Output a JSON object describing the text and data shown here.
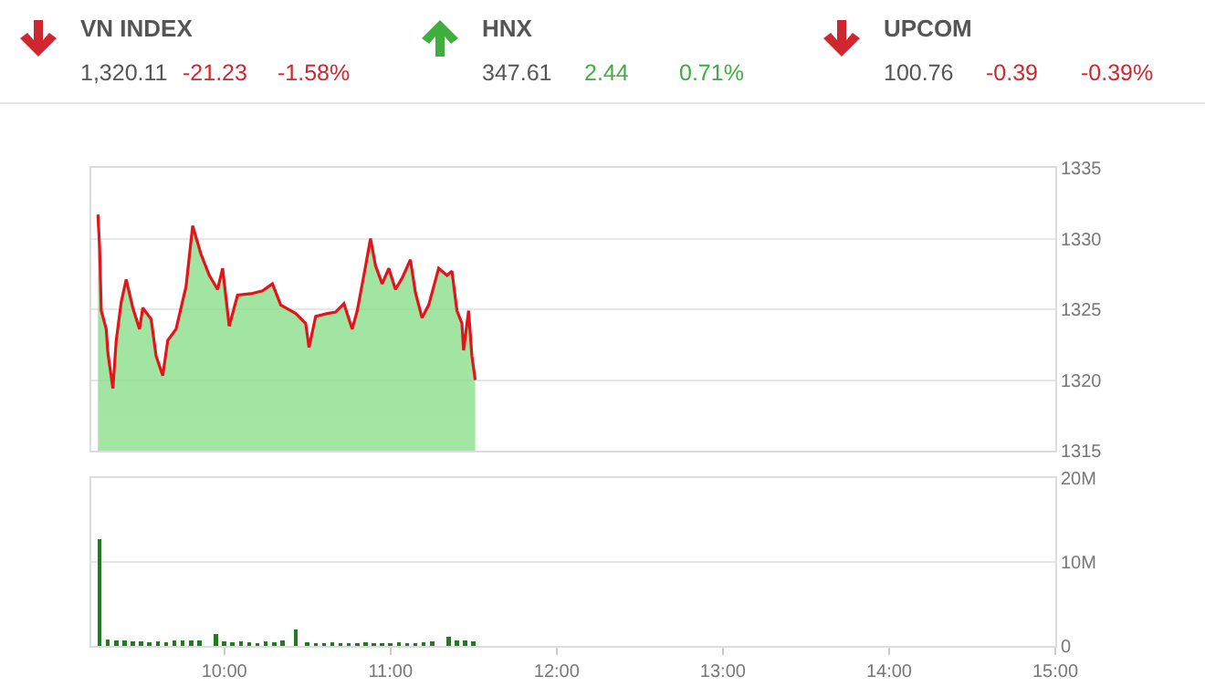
{
  "chart_data": [
    {
      "type": "other",
      "categories": [
        "VN INDEX",
        "HNX",
        "UPCOM"
      ],
      "series": [
        {
          "values": [
            1320.11,
            347.61,
            100.76
          ],
          "value_labels": [
            "1,320.11",
            "347.61",
            "100.76"
          ],
          "colors": [
            "#555555",
            "#555555",
            "#555555"
          ]
        },
        {
          "values": [
            -21.23,
            2.44,
            -0.39
          ],
          "value_labels": [
            "-21.23",
            "2.44",
            "-0.39"
          ],
          "colors": [
            "#d0262f",
            "#3fae3f",
            "#d0262f"
          ]
        },
        {
          "values": [
            -1.58,
            0.71,
            -0.39
          ],
          "value_labels": [
            "-1.58%",
            "0.71%",
            "-0.39%"
          ],
          "colors": [
            "#d0262f",
            "#3fae3f",
            "#d0262f"
          ]
        }
      ]
    },
    {
      "type": "area",
      "x": [
        9.24,
        9.25,
        9.26,
        9.29,
        9.3,
        9.33,
        9.35,
        9.38,
        9.41,
        9.45,
        9.49,
        9.51,
        9.56,
        9.59,
        9.63,
        9.66,
        9.71,
        9.77,
        9.81,
        9.86,
        9.91,
        9.96,
        9.99,
        10.03,
        10.08,
        10.16,
        10.23,
        10.29,
        10.34,
        10.43,
        10.49,
        10.51,
        10.55,
        10.62,
        10.67,
        10.72,
        10.77,
        10.8,
        10.84,
        10.88,
        10.91,
        10.95,
        10.99,
        11.03,
        11.07,
        11.12,
        11.15,
        11.19,
        11.23,
        11.29,
        11.34,
        11.37,
        11.4,
        11.43,
        11.44,
        11.47,
        11.49,
        11.51
      ],
      "series": [
        {
          "color": "#e3141c",
          "values": [
            1331.7,
            1329.4,
            1324.9,
            1323.6,
            1321.9,
            1319.4,
            1322.8,
            1325.5,
            1327.1,
            1325.1,
            1323.6,
            1325.1,
            1324.3,
            1321.7,
            1320.3,
            1322.8,
            1323.6,
            1326.6,
            1330.9,
            1328.9,
            1327.4,
            1326.4,
            1327.9,
            1323.8,
            1326.0,
            1326.1,
            1326.3,
            1326.8,
            1325.3,
            1324.7,
            1324.0,
            1322.3,
            1324.5,
            1324.7,
            1324.8,
            1325.4,
            1323.6,
            1324.9,
            1327.4,
            1330.0,
            1328.1,
            1326.8,
            1327.9,
            1326.4,
            1327.2,
            1328.5,
            1326.2,
            1324.4,
            1325.3,
            1327.9,
            1327.4,
            1327.7,
            1324.9,
            1324.0,
            1322.1,
            1324.9,
            1321.7,
            1320.0
          ]
        }
      ],
      "xlim": [
        9.2,
        15
      ],
      "ylim": [
        1315,
        1335
      ],
      "yticks": [
        1315,
        1320,
        1325,
        1330,
        1335
      ],
      "grid": "y",
      "legend": false,
      "tick_labels": "y"
    },
    {
      "type": "bar",
      "x": [
        9.25,
        9.3,
        9.35,
        9.4,
        9.45,
        9.5,
        9.55,
        9.6,
        9.65,
        9.7,
        9.75,
        9.8,
        9.85,
        9.95,
        10.0,
        10.05,
        10.1,
        10.15,
        10.2,
        10.25,
        10.3,
        10.35,
        10.43,
        10.5,
        10.55,
        10.6,
        10.65,
        10.7,
        10.75,
        10.8,
        10.85,
        10.9,
        10.95,
        11.0,
        11.05,
        11.1,
        11.15,
        11.2,
        11.25,
        11.35,
        11.4,
        11.45,
        11.5
      ],
      "series": [
        {
          "color": "#1e7d1e",
          "values": [
            12700000,
            800000,
            700000,
            600000,
            500000,
            500000,
            400000,
            500000,
            400000,
            600000,
            700000,
            700000,
            600000,
            1400000,
            500000,
            400000,
            500000,
            400000,
            300000,
            500000,
            400000,
            600000,
            2000000,
            400000,
            300000,
            300000,
            400000,
            300000,
            300000,
            300000,
            400000,
            300000,
            300000,
            300000,
            400000,
            300000,
            300000,
            400000,
            500000,
            1100000,
            600000,
            700000,
            500000
          ]
        }
      ],
      "xlim": [
        9.2,
        15
      ],
      "xticks": [
        {
          "value": 10,
          "label": "10:00"
        },
        {
          "value": 11,
          "label": "11:00"
        },
        {
          "value": 12,
          "label": "12:00"
        },
        {
          "value": 13,
          "label": "13:00"
        },
        {
          "value": 14,
          "label": "14:00"
        },
        {
          "value": 15,
          "label": "15:00"
        }
      ],
      "ylim": [
        0,
        20000000
      ],
      "yticks": [
        {
          "value": 0,
          "label": "0"
        },
        {
          "value": 10000000,
          "label": "10M"
        },
        {
          "value": 20000000,
          "label": "20M"
        }
      ],
      "grid": "y",
      "legend": false
    }
  ]
}
